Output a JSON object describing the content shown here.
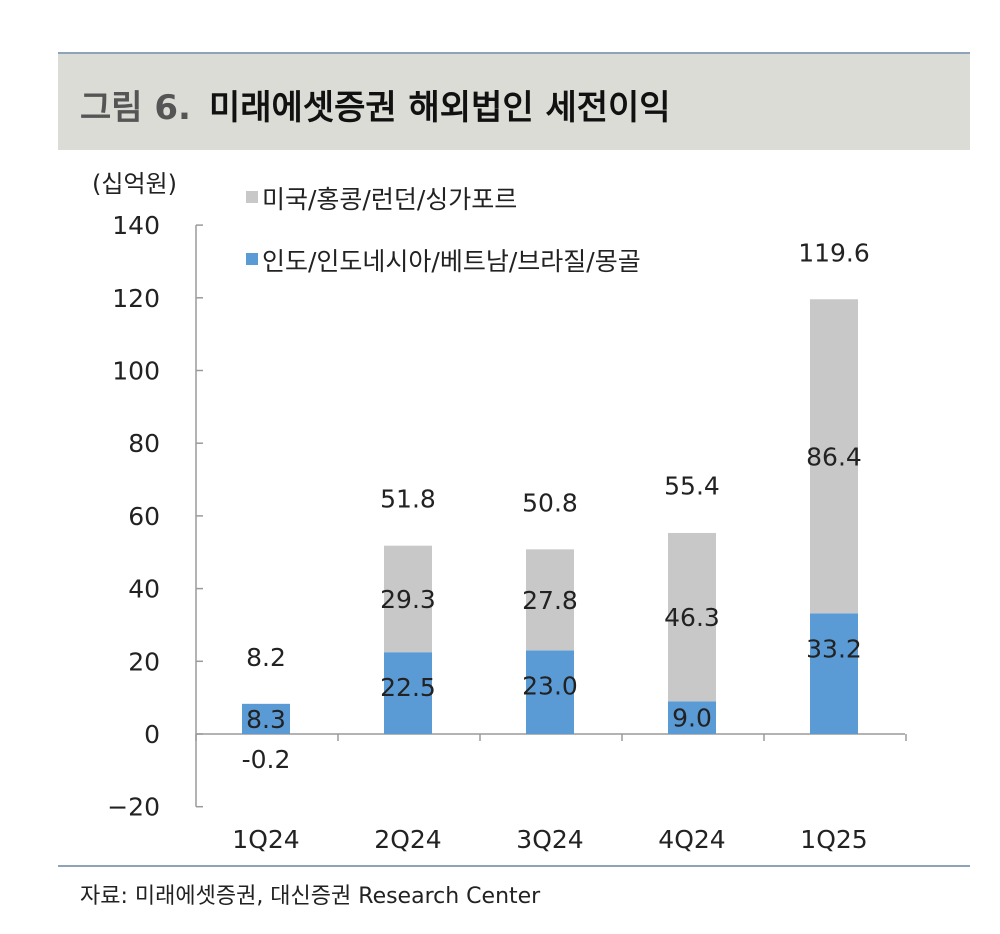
{
  "header": {
    "figure_label": "그림 6.",
    "title": "미래에셋증권 해외법인 세전이익"
  },
  "source": "자료: 미래에셋증권, 대신증권 Research Center",
  "chart_data": {
    "type": "bar",
    "stacked": true,
    "unit_label": "(십억원)",
    "categories": [
      "1Q24",
      "2Q24",
      "3Q24",
      "4Q24",
      "1Q25"
    ],
    "series": [
      {
        "name": "인도/인도네시아/베트남/브라질/몽골",
        "color": "#5b9bd5",
        "values": [
          8.3,
          22.5,
          23.0,
          9.0,
          33.2
        ],
        "labels": [
          "8.3",
          "22.5",
          "23.0",
          "9.0",
          "33.2"
        ]
      },
      {
        "name": "미국/홍콩/런던/싱가포르",
        "color": "#c8c8c8",
        "values": [
          -0.2,
          29.3,
          27.8,
          46.3,
          86.4
        ],
        "labels": [
          "-0.2",
          "29.3",
          "27.8",
          "46.3",
          "86.4"
        ]
      }
    ],
    "totals": [
      8.2,
      51.8,
      50.8,
      55.4,
      119.6
    ],
    "total_labels": [
      "8.2",
      "51.8",
      "50.8",
      "55.4",
      "119.6"
    ],
    "ylim": [
      -20,
      140
    ],
    "yticks": [
      -20,
      0,
      20,
      40,
      60,
      80,
      100,
      120,
      140
    ],
    "ytick_labels": [
      "−20",
      "0",
      "20",
      "40",
      "60",
      "80",
      "100",
      "120",
      "140"
    ],
    "grid": false,
    "legend_position": "top-left"
  }
}
